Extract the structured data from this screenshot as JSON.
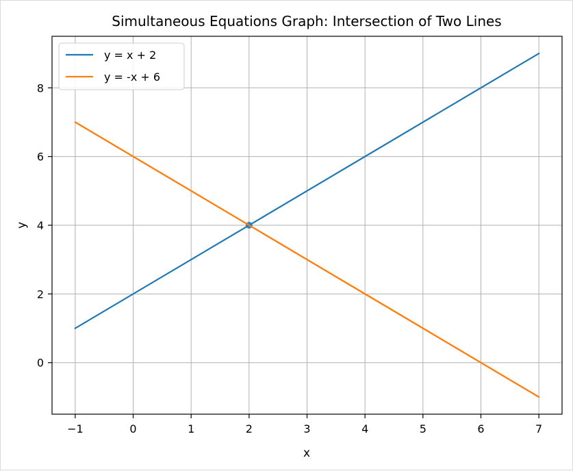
{
  "chart_data": {
    "type": "line",
    "title": "Simultaneous Equations Graph: Intersection of Two Lines",
    "xlabel": "x",
    "ylabel": "y",
    "xlim": [
      -1.4,
      7.4
    ],
    "ylim": [
      -1.5,
      9.5
    ],
    "xticks": [
      -1,
      0,
      1,
      2,
      3,
      4,
      5,
      6,
      7
    ],
    "xtick_labels": [
      "−1",
      "0",
      "1",
      "2",
      "3",
      "4",
      "5",
      "6",
      "7"
    ],
    "yticks": [
      0,
      2,
      4,
      6,
      8
    ],
    "ytick_labels": [
      "0",
      "2",
      "4",
      "6",
      "8"
    ],
    "grid": true,
    "legend_position": "top-left",
    "series": [
      {
        "name": "y = x + 2",
        "color": "#1f77b4",
        "x": [
          -1,
          7
        ],
        "y": [
          1,
          9
        ]
      },
      {
        "name": "y = -x + 6",
        "color": "#ff7f0e",
        "x": [
          -1,
          7
        ],
        "y": [
          7,
          -1
        ]
      }
    ],
    "intersection_marker": {
      "x": 2,
      "y": 4,
      "color": "#1f77b4"
    }
  }
}
